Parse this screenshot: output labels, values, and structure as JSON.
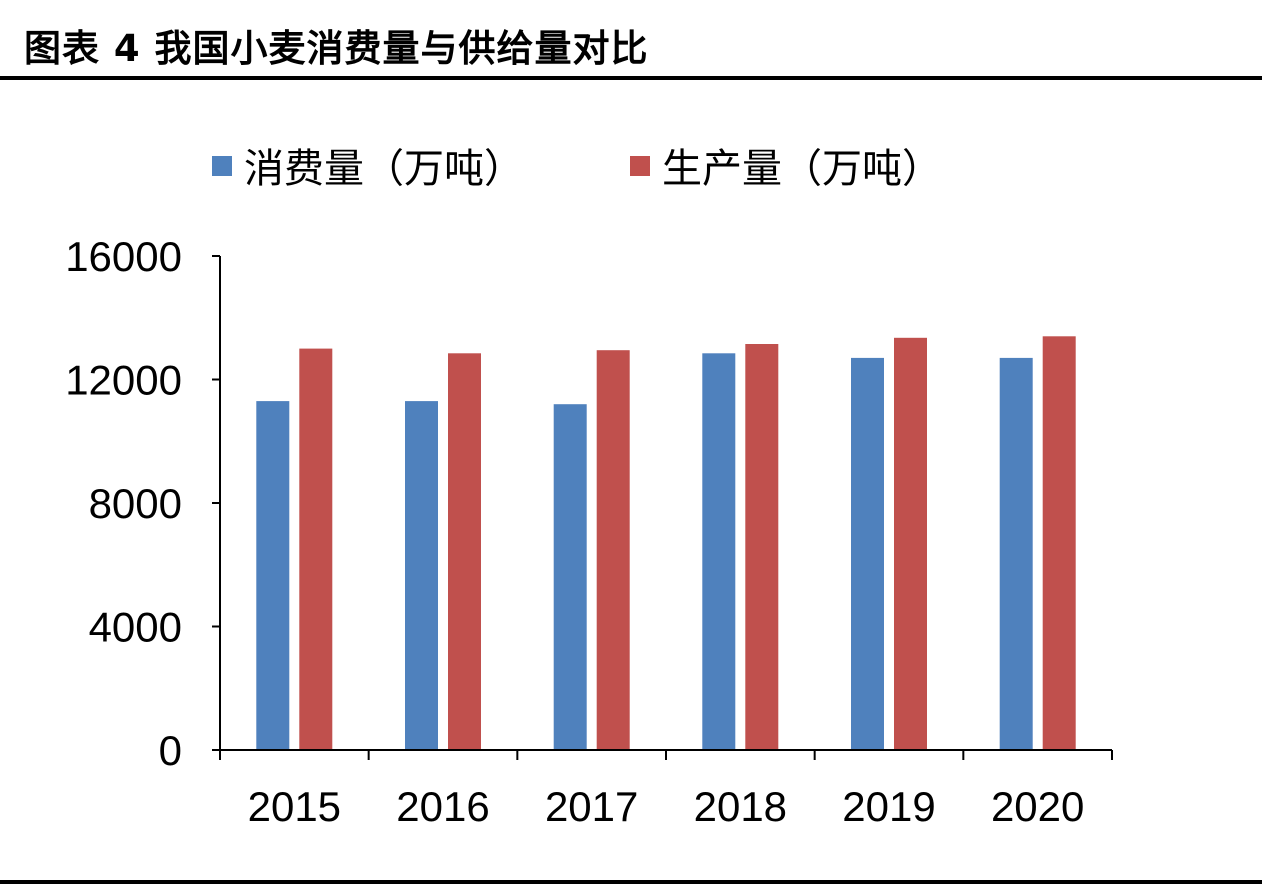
{
  "figure": {
    "title": "图表 4 我国小麦消费量与供给量对比"
  },
  "chart_data": {
    "type": "bar",
    "categories": [
      "2015",
      "2016",
      "2017",
      "2018",
      "2019",
      "2020"
    ],
    "series": [
      {
        "name": "消费量（万吨）",
        "color": "#4F81BD",
        "values": [
          11300,
          11300,
          11200,
          12850,
          12700,
          12700
        ]
      },
      {
        "name": "生产量（万吨）",
        "color": "#C0504D",
        "values": [
          13000,
          12850,
          12950,
          13150,
          13350,
          13400
        ]
      }
    ],
    "yticks": [
      "0",
      "4000",
      "8000",
      "12000",
      "16000"
    ],
    "ylim": [
      0,
      16000
    ],
    "legend": "top",
    "grid": false
  }
}
